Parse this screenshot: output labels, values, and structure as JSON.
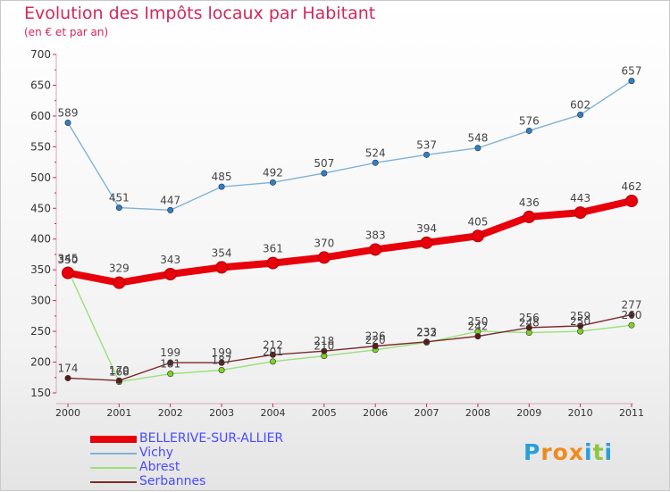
{
  "title": "Evolution des Impôts locaux par Habitant",
  "subtitle": "(en € et par an)",
  "logo": {
    "text": "Proxiti",
    "letters": [
      "P",
      "r",
      "o",
      "x",
      "i",
      "t",
      "i"
    ],
    "colors": [
      "#2a9fd6",
      "#f08a1c",
      "#f08a1c",
      "#f08a1c",
      "#2a9fd6",
      "#8cc63f",
      "#2a9fd6"
    ]
  },
  "chart_data": {
    "type": "line",
    "title": "Evolution des Impôts locaux par Habitant",
    "subtitle": "(en € et par an)",
    "xlabel": "",
    "ylabel": "",
    "categories": [
      "2000",
      "2001",
      "2002",
      "2003",
      "2004",
      "2005",
      "2006",
      "2007",
      "2008",
      "2009",
      "2010",
      "2011"
    ],
    "ylim": [
      150,
      700
    ],
    "yticks": [
      150,
      200,
      250,
      300,
      350,
      400,
      450,
      500,
      550,
      600,
      650,
      700
    ],
    "grid": false,
    "legend_position": "bottom-left",
    "series": [
      {
        "name": "BELLERIVE-SUR-ALLIER",
        "color": "#e8000b",
        "marker_color": "#e8000b",
        "width": "thick",
        "values": [
          345,
          329,
          343,
          354,
          361,
          370,
          383,
          394,
          405,
          436,
          443,
          462
        ]
      },
      {
        "name": "Vichy",
        "color": "#7fb2d8",
        "marker_color": "#2f7fc7",
        "width": "thin",
        "values": [
          589,
          451,
          447,
          485,
          492,
          507,
          524,
          537,
          548,
          576,
          602,
          657
        ]
      },
      {
        "name": "Abrest",
        "color": "#9ae07a",
        "marker_color": "#7ed321",
        "width": "thin",
        "values": [
          350,
          168,
          181,
          187,
          201,
          210,
          220,
          232,
          250,
          248,
          250,
          260
        ]
      },
      {
        "name": "Serbannes",
        "color": "#7a2a2a",
        "marker_color": "#5c1a1a",
        "width": "thin",
        "values": [
          174,
          170,
          199,
          199,
          212,
          218,
          226,
          233,
          242,
          256,
          259,
          277
        ]
      }
    ]
  }
}
